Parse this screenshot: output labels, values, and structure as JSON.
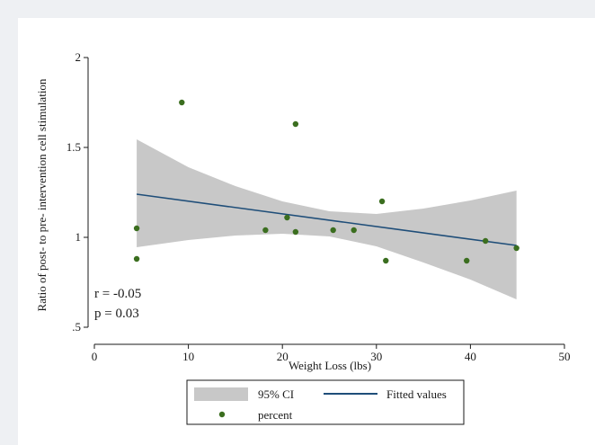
{
  "chart_data": {
    "type": "scatter",
    "title": "",
    "xlabel": "Weight Loss (lbs)",
    "ylabel": "Ratio of post- to pre- intervention cell stimulation",
    "xlim": [
      0,
      50
    ],
    "ylim": [
      0.5,
      2.0
    ],
    "x_ticks": [
      0,
      10,
      20,
      30,
      40,
      50
    ],
    "x_tick_labels": [
      "0",
      "10",
      "20",
      "30",
      "40",
      "50"
    ],
    "y_ticks": [
      0.5,
      1.0,
      1.5,
      2.0
    ],
    "y_tick_labels": [
      ".5",
      "1",
      "1.5",
      "2"
    ],
    "grid": false,
    "legend_position": "bottom",
    "series": [
      {
        "name": "percent",
        "kind": "scatter",
        "color": "#3b6e1f",
        "points": [
          {
            "x": 4.5,
            "y": 1.05
          },
          {
            "x": 4.5,
            "y": 0.88
          },
          {
            "x": 9.3,
            "y": 1.75
          },
          {
            "x": 18.2,
            "y": 1.04
          },
          {
            "x": 20.5,
            "y": 1.11
          },
          {
            "x": 21.4,
            "y": 1.63
          },
          {
            "x": 21.4,
            "y": 1.03
          },
          {
            "x": 25.4,
            "y": 1.04
          },
          {
            "x": 27.6,
            "y": 1.04
          },
          {
            "x": 30.6,
            "y": 1.2
          },
          {
            "x": 31.0,
            "y": 0.87
          },
          {
            "x": 39.6,
            "y": 0.87
          },
          {
            "x": 41.6,
            "y": 0.98
          },
          {
            "x": 44.9,
            "y": 0.94
          }
        ]
      },
      {
        "name": "Fitted values",
        "kind": "line",
        "color": "#1f4e79",
        "points": [
          {
            "x": 4.5,
            "y": 1.24
          },
          {
            "x": 44.9,
            "y": 0.955
          }
        ]
      },
      {
        "name": "95% CI",
        "kind": "band",
        "color": "#c8c8c8",
        "points": [
          {
            "x": 4.5,
            "lower": 0.945,
            "upper": 1.545
          },
          {
            "x": 10,
            "lower": 0.985,
            "upper": 1.39
          },
          {
            "x": 15,
            "lower": 1.01,
            "upper": 1.285
          },
          {
            "x": 20,
            "lower": 1.02,
            "upper": 1.2
          },
          {
            "x": 25,
            "lower": 1.005,
            "upper": 1.145
          },
          {
            "x": 30,
            "lower": 0.95,
            "upper": 1.13
          },
          {
            "x": 35,
            "lower": 0.86,
            "upper": 1.16
          },
          {
            "x": 40,
            "lower": 0.765,
            "upper": 1.205
          },
          {
            "x": 44.9,
            "lower": 0.655,
            "upper": 1.26
          }
        ]
      }
    ],
    "annotations": [
      "r = -0.05",
      "p = 0.03"
    ],
    "legend": [
      {
        "label": "95% CI",
        "kind": "band"
      },
      {
        "label": "Fitted values",
        "kind": "line"
      },
      {
        "label": "percent",
        "kind": "marker"
      }
    ]
  }
}
